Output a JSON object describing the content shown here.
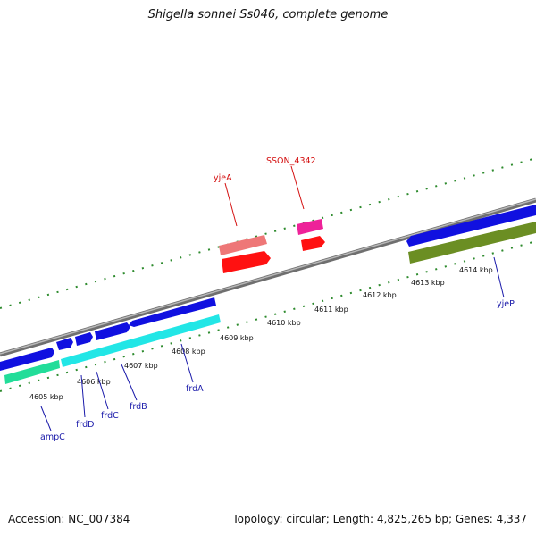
{
  "title": "Shigella sonnei Ss046, complete genome",
  "accession": "Accession: NC_007384",
  "topology": "Topology: circular; Length: 4,825,265 bp; Genes: 4,337",
  "kbp_ticks": [
    "4605 kbp",
    "4606 kbp",
    "4607 kbp",
    "4608 kbp",
    "4609 kbp",
    "4610 kbp",
    "4611 kbp",
    "4612 kbp",
    "4613 kbp",
    "4614 kbp"
  ],
  "gene_labels": {
    "ampC": "ampC",
    "frdD": "frdD",
    "frdC": "frdC",
    "frdB": "frdB",
    "frdA": "frdA",
    "yjeA": "yjeA",
    "SSON_4342": "SSON_4342",
    "yjeP": "yjeP"
  },
  "colors": {
    "backbone": "#8a8a8a",
    "tick": "#2e8b2e",
    "gene_blue": "#1010e0",
    "gene_cyan": "#22e6e6",
    "gene_teal": "#22dd99",
    "gene_olive": "#6b8e23",
    "gene_red": "#ff1111",
    "gene_salmon": "#ee7777",
    "gene_pink": "#ee2299",
    "label_blue": "#1a1aaa",
    "label_red": "#d41010"
  }
}
